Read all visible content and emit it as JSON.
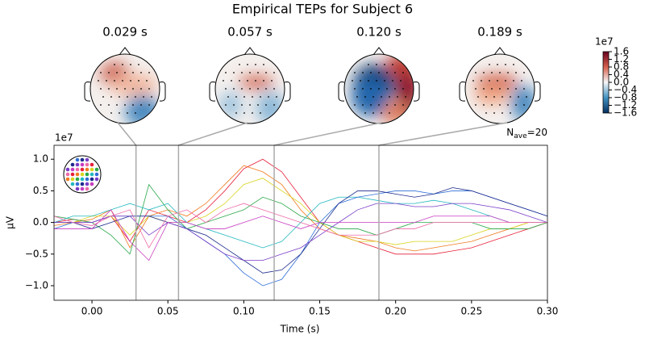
{
  "chart_data": {
    "type": "line",
    "title": "Empirical TEPs for Subject 6",
    "xlabel": "Time (s)",
    "ylabel": "µV",
    "y_offset_label": "1e7",
    "nave_label": {
      "symbol": "N",
      "subscript": "ave",
      "text": "=20"
    },
    "xlim": [
      -0.025,
      0.3
    ],
    "ylim": [
      -1.23,
      1.22
    ],
    "xticks": [
      {
        "value": 0,
        "label": "0.00"
      },
      {
        "value": 0.05,
        "label": "0.05"
      },
      {
        "value": 0.1,
        "label": "0.10"
      },
      {
        "value": 0.15,
        "label": "0.15"
      },
      {
        "value": 0.2,
        "label": "0.20"
      },
      {
        "value": 0.25,
        "label": "0.25"
      },
      {
        "value": 0.3,
        "label": "0.30"
      }
    ],
    "yticks": [
      {
        "value": -1,
        "label": "−1.0"
      },
      {
        "value": -0.5,
        "label": "−0.5"
      },
      {
        "value": 0,
        "label": "0.0"
      },
      {
        "value": 0.5,
        "label": "0.5"
      },
      {
        "value": 1,
        "label": "1.0"
      }
    ],
    "topomap_times": [
      {
        "value": 0.029,
        "label": "0.029 s"
      },
      {
        "value": 0.057,
        "label": "0.057 s"
      },
      {
        "value": 0.12,
        "label": "0.120 s"
      },
      {
        "value": 0.189,
        "label": "0.189 s"
      }
    ],
    "colorbar": {
      "offset_label": "1e7",
      "lim": [
        -1.6,
        1.6
      ],
      "ticks": [
        {
          "value": 1.6,
          "label": "1.6"
        },
        {
          "value": 1.2,
          "label": "1.2"
        },
        {
          "value": 0.8,
          "label": "0.8"
        },
        {
          "value": 0.4,
          "label": "0.4"
        },
        {
          "value": 0,
          "label": "0.0"
        },
        {
          "value": -0.4,
          "label": "−0.4"
        },
        {
          "value": -0.8,
          "label": "−0.8"
        },
        {
          "value": -1.2,
          "label": "−1.2"
        },
        {
          "value": -1.6,
          "label": "−1.6"
        }
      ]
    },
    "x": [
      -0.025,
      -0.0125,
      0,
      0.0125,
      0.025,
      0.0375,
      0.05,
      0.0625,
      0.075,
      0.0875,
      0.1,
      0.1125,
      0.125,
      0.1375,
      0.15,
      0.1625,
      0.175,
      0.1875,
      0.2,
      0.2125,
      0.225,
      0.2375,
      0.25,
      0.2625,
      0.275,
      0.2875,
      0.3
    ],
    "series": [
      {
        "color": "#e8203a",
        "values": [
          0,
          0.05,
          0,
          0.1,
          -0.3,
          0.2,
          0.1,
          0,
          0.2,
          0.5,
          0.85,
          1.0,
          0.8,
          0.4,
          0,
          -0.2,
          -0.3,
          -0.4,
          -0.5,
          -0.5,
          -0.5,
          -0.45,
          -0.4,
          -0.3,
          -0.2,
          -0.1,
          0
        ]
      },
      {
        "color": "#f07a1e",
        "values": [
          -0.05,
          0,
          0.05,
          0.2,
          -0.4,
          0.1,
          0.2,
          0.1,
          0.3,
          0.6,
          0.9,
          0.8,
          0.6,
          0.2,
          -0.1,
          -0.2,
          -0.25,
          -0.3,
          -0.4,
          -0.45,
          -0.4,
          -0.35,
          -0.3,
          -0.2,
          -0.1,
          0,
          0
        ]
      },
      {
        "color": "#d8d41c",
        "values": [
          0,
          0,
          0.1,
          0.1,
          -0.2,
          0.1,
          0,
          0,
          0.1,
          0.3,
          0.6,
          0.7,
          0.5,
          0.3,
          0,
          -0.2,
          -0.3,
          -0.3,
          -0.35,
          -0.3,
          -0.3,
          -0.3,
          -0.2,
          -0.1,
          -0.1,
          0,
          0
        ]
      },
      {
        "color": "#2aa84a",
        "values": [
          0.1,
          0.05,
          0,
          -0.2,
          -0.5,
          0.6,
          0.2,
          -0.1,
          0,
          0.1,
          0.2,
          0.4,
          0.3,
          0.1,
          0,
          -0.1,
          -0.1,
          -0.2,
          -0.1,
          0,
          0,
          0,
          0,
          -0.1,
          -0.1,
          -0.1,
          0
        ]
      },
      {
        "color": "#22b8c0",
        "values": [
          0,
          0.1,
          0.1,
          0.2,
          0.3,
          0.2,
          0.3,
          0,
          -0.1,
          -0.2,
          -0.3,
          -0.4,
          -0.3,
          0,
          0.3,
          0.4,
          0.4,
          0.35,
          0.3,
          0.3,
          0.35,
          0.3,
          0.2,
          0.1,
          0,
          0,
          0
        ]
      },
      {
        "color": "#2f6fd8",
        "values": [
          -0.1,
          0,
          0,
          0.1,
          0.1,
          0.1,
          0.1,
          -0.1,
          -0.3,
          -0.5,
          -0.8,
          -1.0,
          -0.9,
          -0.5,
          0,
          0.3,
          0.4,
          0.45,
          0.5,
          0.5,
          0.45,
          0.5,
          0.5,
          0.4,
          0.3,
          0.2,
          0.1
        ]
      },
      {
        "color": "#1c2a8c",
        "values": [
          0,
          0,
          -0.1,
          0,
          0.1,
          0.1,
          0,
          -0.1,
          -0.2,
          -0.4,
          -0.6,
          -0.8,
          -0.75,
          -0.5,
          -0.1,
          0.3,
          0.5,
          0.5,
          0.45,
          0.4,
          0.45,
          0.55,
          0.5,
          0.4,
          0.3,
          0.2,
          0.1
        ]
      },
      {
        "color": "#7a3cc8",
        "values": [
          0,
          0,
          0,
          0.1,
          0.1,
          -0.2,
          0,
          -0.1,
          -0.3,
          -0.5,
          -0.6,
          -0.6,
          -0.5,
          -0.4,
          -0.2,
          0,
          0.2,
          0.3,
          0.3,
          0.25,
          0.25,
          0.3,
          0.3,
          0.25,
          0.2,
          0.1,
          0
        ]
      },
      {
        "color": "#c83cc0",
        "values": [
          -0.1,
          -0.1,
          -0.1,
          0.2,
          -0.3,
          -0.6,
          0,
          0,
          -0.1,
          -0.1,
          0,
          0.1,
          0,
          -0.1,
          0,
          0,
          0,
          0,
          0,
          0,
          0.1,
          0.1,
          0.1,
          0.1,
          0,
          0,
          0
        ]
      },
      {
        "color": "#ee6aa8",
        "values": [
          0.1,
          0,
          -0.05,
          0.1,
          0.2,
          -0.4,
          0.1,
          0.2,
          0,
          0.2,
          0.3,
          0.2,
          0.1,
          0,
          -0.1,
          -0.2,
          -0.2,
          -0.2,
          -0.1,
          -0.1,
          0,
          0,
          0,
          0,
          0,
          0,
          0
        ]
      }
    ]
  }
}
